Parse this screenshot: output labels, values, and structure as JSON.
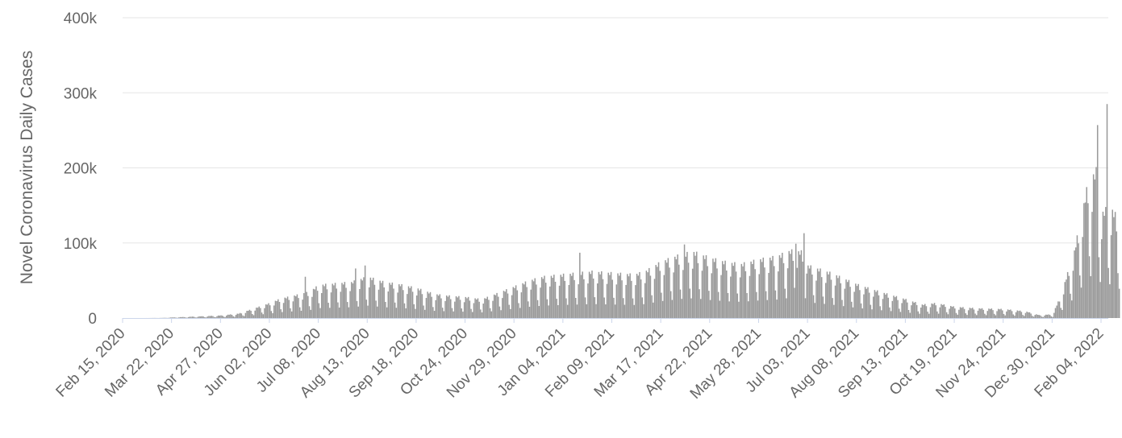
{
  "chart_data": {
    "type": "bar",
    "title": "",
    "xlabel": "",
    "ylabel": "Novel Coronavirus Daily Cases",
    "ylim": [
      0,
      400000
    ],
    "y_ticks": [
      {
        "value": 0,
        "label": "0"
      },
      {
        "value": 100000,
        "label": "100k"
      },
      {
        "value": 200000,
        "label": "200k"
      },
      {
        "value": 300000,
        "label": "300k"
      },
      {
        "value": 400000,
        "label": "400k"
      }
    ],
    "x_ticks": [
      {
        "date": "2020-02-15",
        "label": "Feb 15, 2020"
      },
      {
        "date": "2020-03-22",
        "label": "Mar 22, 2020"
      },
      {
        "date": "2020-04-27",
        "label": "Apr 27, 2020"
      },
      {
        "date": "2020-06-02",
        "label": "Jun 02, 2020"
      },
      {
        "date": "2020-07-08",
        "label": "Jul 08, 2020"
      },
      {
        "date": "2020-08-13",
        "label": "Aug 13, 2020"
      },
      {
        "date": "2020-09-18",
        "label": "Sep 18, 2020"
      },
      {
        "date": "2020-10-24",
        "label": "Oct 24, 2020"
      },
      {
        "date": "2020-11-29",
        "label": "Nov 29, 2020"
      },
      {
        "date": "2021-01-04",
        "label": "Jan 04, 2021"
      },
      {
        "date": "2021-02-09",
        "label": "Feb 09, 2021"
      },
      {
        "date": "2021-03-17",
        "label": "Mar 17, 2021"
      },
      {
        "date": "2021-04-22",
        "label": "Apr 22, 2021"
      },
      {
        "date": "2021-05-28",
        "label": "May 28, 2021"
      },
      {
        "date": "2021-07-03",
        "label": "Jul 03, 2021"
      },
      {
        "date": "2021-08-08",
        "label": "Aug 08, 2021"
      },
      {
        "date": "2021-09-13",
        "label": "Sep 13, 2021"
      },
      {
        "date": "2021-10-19",
        "label": "Oct 19, 2021"
      },
      {
        "date": "2021-11-24",
        "label": "Nov 24, 2021"
      },
      {
        "date": "2021-12-30",
        "label": "Dec 30, 2021"
      },
      {
        "date": "2022-02-04",
        "label": "Feb 04, 2022"
      }
    ],
    "grid": true,
    "bar_color": "#999999",
    "grid_color": "#e6e6e6",
    "baseline_color": "#ccd6eb",
    "series": [
      {
        "points": [
          [
            "2020-02-15",
            0
          ],
          [
            "2020-03-01",
            0
          ],
          [
            "2020-03-15",
            200
          ],
          [
            "2020-03-22",
            800
          ],
          [
            "2020-04-01",
            1500
          ],
          [
            "2020-04-15",
            2500
          ],
          [
            "2020-04-27",
            3500
          ],
          [
            "2020-05-10",
            6000
          ],
          [
            "2020-05-20",
            12000
          ],
          [
            "2020-06-02",
            20000
          ],
          [
            "2020-06-10",
            26000
          ],
          [
            "2020-06-20",
            30000
          ],
          [
            "2020-07-01",
            35000
          ],
          [
            "2020-07-08",
            44000
          ],
          [
            "2020-07-20",
            46000
          ],
          [
            "2020-08-01",
            48000
          ],
          [
            "2020-08-13",
            55000
          ],
          [
            "2020-08-25",
            48000
          ],
          [
            "2020-09-05",
            45000
          ],
          [
            "2020-09-18",
            40000
          ],
          [
            "2020-10-01",
            32000
          ],
          [
            "2020-10-10",
            30000
          ],
          [
            "2020-10-24",
            28000
          ],
          [
            "2020-11-05",
            25000
          ],
          [
            "2020-11-15",
            32000
          ],
          [
            "2020-11-29",
            42000
          ],
          [
            "2020-12-10",
            50000
          ],
          [
            "2020-12-20",
            55000
          ],
          [
            "2021-01-04",
            58000
          ],
          [
            "2021-01-15",
            60000
          ],
          [
            "2021-01-25",
            62000
          ],
          [
            "2021-02-09",
            60000
          ],
          [
            "2021-02-25",
            58000
          ],
          [
            "2021-03-05",
            62000
          ],
          [
            "2021-03-17",
            75000
          ],
          [
            "2021-04-01",
            85000
          ],
          [
            "2021-04-10",
            88000
          ],
          [
            "2021-04-22",
            80000
          ],
          [
            "2021-05-05",
            74000
          ],
          [
            "2021-05-15",
            72000
          ],
          [
            "2021-05-28",
            78000
          ],
          [
            "2021-06-10",
            82000
          ],
          [
            "2021-06-20",
            90000
          ],
          [
            "2021-07-01",
            88000
          ],
          [
            "2021-07-03",
            70000
          ],
          [
            "2021-07-20",
            60000
          ],
          [
            "2021-08-08",
            45000
          ],
          [
            "2021-08-25",
            35000
          ],
          [
            "2021-09-13",
            25000
          ],
          [
            "2021-09-25",
            18000
          ],
          [
            "2021-10-05",
            20000
          ],
          [
            "2021-10-19",
            15000
          ],
          [
            "2021-11-05",
            13000
          ],
          [
            "2021-11-24",
            12000
          ],
          [
            "2021-12-10",
            9000
          ],
          [
            "2021-12-20",
            4000
          ],
          [
            "2021-12-30",
            5000
          ],
          [
            "2022-01-05",
            30000
          ],
          [
            "2022-01-15",
            90000
          ],
          [
            "2022-01-25",
            180000
          ],
          [
            "2022-02-01",
            200000
          ],
          [
            "2022-02-04",
            140000
          ],
          [
            "2022-02-10",
            150000
          ],
          [
            "2022-02-17",
            130000
          ]
        ],
        "weekly_modulation": [
          1.0,
          0.95,
          1.02,
          0.85,
          0.45,
          0.3,
          0.75
        ],
        "spikes": [
          [
            "2020-06-28",
            55000
          ],
          [
            "2020-08-04",
            66000
          ],
          [
            "2020-08-11",
            70000
          ],
          [
            "2021-01-16",
            87000
          ],
          [
            "2021-04-03",
            98000
          ],
          [
            "2021-06-24",
            99000
          ],
          [
            "2021-06-30",
            113000
          ],
          [
            "2022-02-01",
            257000
          ],
          [
            "2022-02-08",
            285000
          ]
        ]
      }
    ]
  }
}
